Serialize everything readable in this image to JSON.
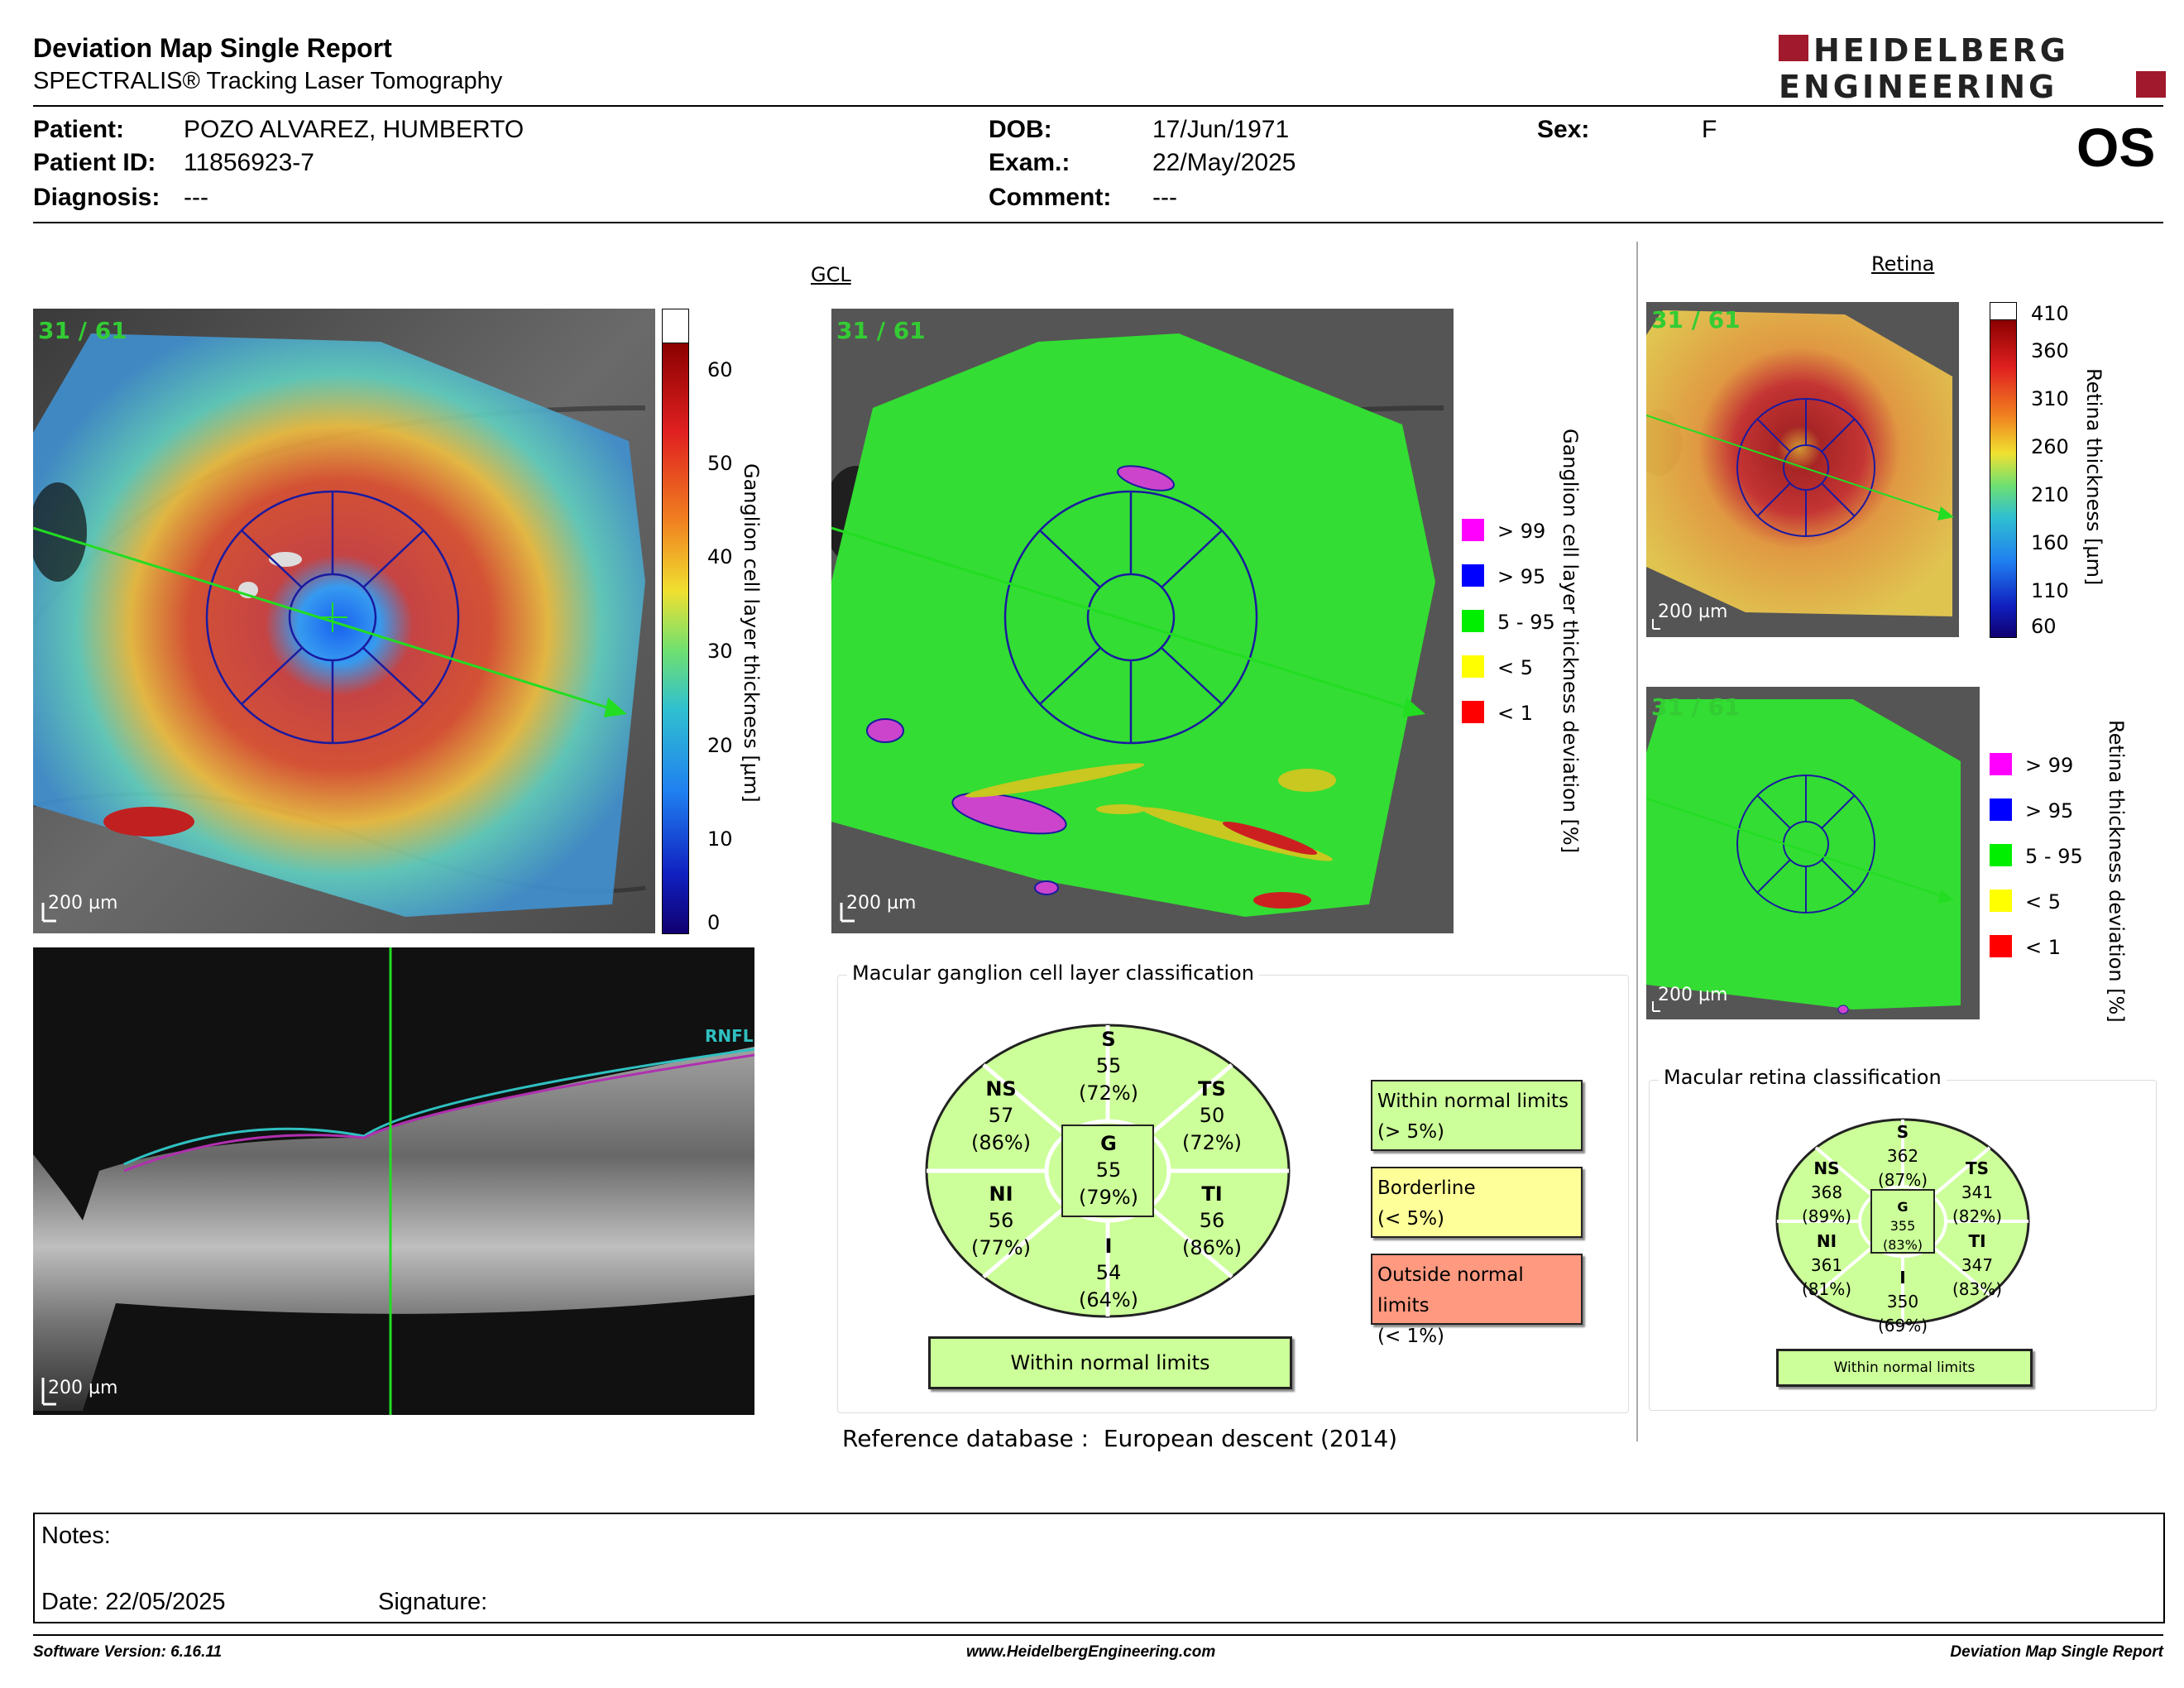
{
  "header": {
    "title": "Deviation Map Single Report",
    "subtitle": "SPECTRALIS® Tracking Laser Tomography",
    "logo_line1": "HEIDELBERG",
    "logo_line2": "ENGINEERING",
    "eye": "OS"
  },
  "patient": {
    "patient_label": "Patient:",
    "patient_value": "POZO ALVAREZ, HUMBERTO",
    "id_label": "Patient ID:",
    "id_value": "11856923-7",
    "diagnosis_label": "Diagnosis:",
    "diagnosis_value": "---",
    "dob_label": "DOB:",
    "dob_value": "17/Jun/1971",
    "exam_label": "Exam.:",
    "exam_value": "22/May/2025",
    "comment_label": "Comment:",
    "comment_value": "---",
    "sex_label": "Sex:",
    "sex_value": "F"
  },
  "gcl": {
    "section_label": "GCL",
    "thickness_map": {
      "ratio": "31 / 61",
      "scale": "200 µm",
      "colorbar_ticks": [
        "60",
        "50",
        "40",
        "30",
        "20",
        "10",
        "0"
      ],
      "colorbar_label": "Ganglion cell layer thickness [µm]"
    },
    "deviation_map": {
      "ratio": "31 / 61",
      "scale": "200 µm",
      "axis_label": "Ganglion cell layer thickness deviation [%]",
      "legend": [
        {
          "label": "> 99",
          "color": "#ff00ff"
        },
        {
          "label": "> 95",
          "color": "#0000ff"
        },
        {
          "label": "5 - 95",
          "color": "#00ee00"
        },
        {
          "label": "< 5",
          "color": "#ffff00"
        },
        {
          "label": "< 1",
          "color": "#ff0000"
        }
      ]
    },
    "bscan": {
      "scale": "200 µm",
      "layer_label": "RNFL"
    }
  },
  "gcl_classification": {
    "title": "Macular ganglion cell layer classification",
    "sectors": {
      "S": {
        "name": "S",
        "value": "55",
        "pct": "(72%)"
      },
      "NS": {
        "name": "NS",
        "value": "57",
        "pct": "(86%)"
      },
      "TS": {
        "name": "TS",
        "value": "50",
        "pct": "(72%)"
      },
      "G": {
        "name": "G",
        "value": "55",
        "pct": "(79%)"
      },
      "NI": {
        "name": "NI",
        "value": "56",
        "pct": "(77%)"
      },
      "TI": {
        "name": "TI",
        "value": "56",
        "pct": "(86%)"
      },
      "I": {
        "name": "I",
        "value": "54",
        "pct": "(64%)"
      }
    },
    "result": "Within normal limits",
    "categories": [
      {
        "line1": "Within normal limits",
        "line2": "(> 5%)",
        "color": "#ccff99"
      },
      {
        "line1": "Borderline",
        "line2": "(< 5%)",
        "color": "#ffff99"
      },
      {
        "line1": "Outside normal limits",
        "line2": "(< 1%)",
        "color": "#ff9980"
      }
    ],
    "reference_label": "Reference database :",
    "reference_value": "European descent (2014)"
  },
  "retina": {
    "section_label": "Retina",
    "thickness_map": {
      "ratio": "31 / 61",
      "scale": "200 µm",
      "colorbar_ticks": [
        "410",
        "360",
        "310",
        "260",
        "210",
        "160",
        "110",
        "60"
      ],
      "colorbar_label": "Retina thickness [µm]"
    },
    "deviation_map": {
      "ratio": "31 / 61",
      "scale": "200 µm",
      "axis_label": "Retina thickness deviation [%]",
      "legend": [
        {
          "label": "> 99",
          "color": "#ff00ff"
        },
        {
          "label": "> 95",
          "color": "#0000ff"
        },
        {
          "label": "5 - 95",
          "color": "#00ee00"
        },
        {
          "label": "< 5",
          "color": "#ffff00"
        },
        {
          "label": "< 1",
          "color": "#ff0000"
        }
      ]
    }
  },
  "retina_classification": {
    "title": "Macular retina classification",
    "sectors": {
      "S": {
        "name": "S",
        "value": "362",
        "pct": "(87%)"
      },
      "NS": {
        "name": "NS",
        "value": "368",
        "pct": "(89%)"
      },
      "TS": {
        "name": "TS",
        "value": "341",
        "pct": "(82%)"
      },
      "G": {
        "name": "G",
        "value": "355",
        "pct": "(83%)"
      },
      "NI": {
        "name": "NI",
        "value": "361",
        "pct": "(81%)"
      },
      "TI": {
        "name": "TI",
        "value": "347",
        "pct": "(83%)"
      },
      "I": {
        "name": "I",
        "value": "350",
        "pct": "(69%)"
      }
    },
    "result": "Within normal limits"
  },
  "notes": {
    "notes_label": "Notes:",
    "date_label": "Date: 22/05/2025",
    "signature_label": "Signature:"
  },
  "footer": {
    "software": "Software Version: 6.16.11",
    "website": "www.HeidelbergEngineering.com",
    "report": "Deviation Map Single Report"
  },
  "colors": {
    "grid_green": "#ccff99",
    "brand_red": "#a0192c",
    "sector_blue": "#1a1aa0",
    "scan_green": "#22dd22"
  }
}
